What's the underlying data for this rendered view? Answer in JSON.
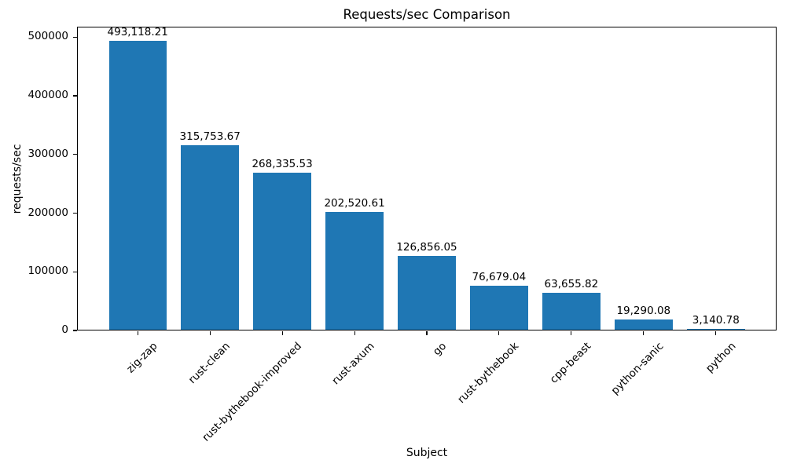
{
  "figure": {
    "background": "#ffffff"
  },
  "chart_data": {
    "type": "bar",
    "title": "Requests/sec Comparison",
    "xlabel": "Subject",
    "ylabel": "requests/sec",
    "categories": [
      "zig-zap",
      "rust-clean",
      "rust-bythebook-improved",
      "rust-axum",
      "go",
      "rust-bythebook",
      "cpp-beast",
      "python-sanic",
      "python"
    ],
    "values": [
      493118.21,
      315753.67,
      268335.53,
      202520.61,
      126856.05,
      76679.04,
      63655.82,
      19290.08,
      3140.78
    ],
    "value_labels": [
      "493,118.21",
      "315,753.67",
      "268,335.53",
      "202,520.61",
      "126,856.05",
      "76,679.04",
      "63,655.82",
      "19,290.08",
      "3,140.78"
    ],
    "yticks": [
      0,
      100000,
      200000,
      300000,
      400000,
      500000
    ],
    "ytick_labels": [
      "0",
      "100000",
      "200000",
      "300000",
      "400000",
      "500000"
    ],
    "ylim": [
      0,
      517774
    ],
    "xlim": [
      -0.84,
      8.84
    ],
    "bar_width": 0.8,
    "bar_color": "#1f77b4",
    "text_color": "#000000",
    "grid": false,
    "legend": "none"
  }
}
